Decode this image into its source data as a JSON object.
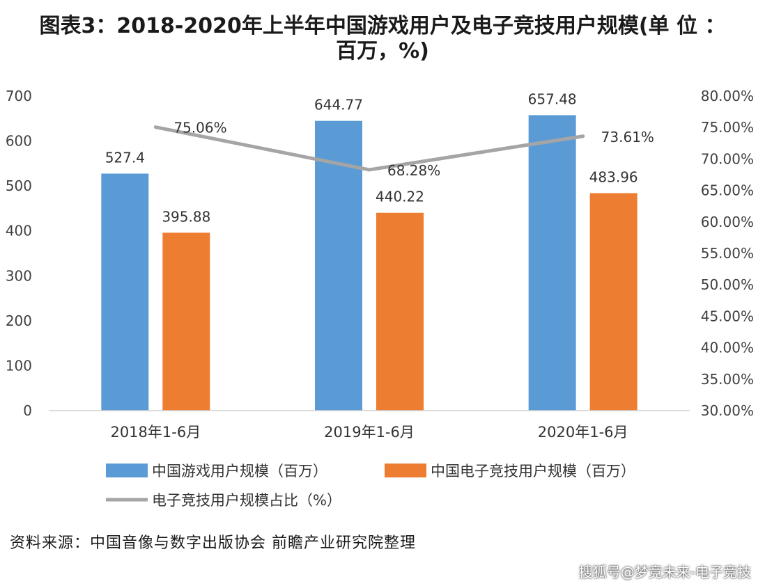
{
  "chart_data": {
    "type": "bar",
    "title_line1": "图表3：2018-2020年上半年中国游戏用户及电子竞技用户规模(单 位 ：",
    "title_line2": "百万，%)",
    "categories": [
      "2018年1-6月",
      "2019年1-6月",
      "2020年1-6月"
    ],
    "series": [
      {
        "name": "中国游戏用户规模（百万）",
        "values": [
          527.4,
          644.77,
          657.48
        ],
        "labels": [
          "527.4",
          "644.77",
          "657.48"
        ],
        "color": "#5B9BD5",
        "axis": "left"
      },
      {
        "name": "中国电子竞技用户规模（百万）",
        "values": [
          395.88,
          440.22,
          483.96
        ],
        "labels": [
          "395.88",
          "440.22",
          "483.96"
        ],
        "color": "#ED7D31",
        "axis": "left"
      }
    ],
    "line_series": {
      "name": "电子竞技用户规模占比（%）",
      "type": "line",
      "values": [
        75.06,
        68.28,
        73.61
      ],
      "labels": [
        "75.06%",
        "68.28%",
        "73.61%"
      ],
      "color": "#A5A5A5",
      "axis": "right"
    },
    "y_left": {
      "min": 0,
      "max": 700,
      "ticks": [
        "0",
        "100",
        "200",
        "300",
        "400",
        "500",
        "600",
        "700"
      ]
    },
    "y_right": {
      "min": 30,
      "max": 80,
      "ticks": [
        "30.00%",
        "35.00%",
        "40.00%",
        "45.00%",
        "50.00%",
        "55.00%",
        "60.00%",
        "65.00%",
        "70.00%",
        "75.00%",
        "80.00%"
      ]
    },
    "legend_position": "bottom",
    "grid": false
  },
  "footer": {
    "source": "资料来源：中国音像与数字出版协会   前瞻产业研究院整理",
    "brand": "搜狐号@梦竞未来-电子竞技"
  }
}
